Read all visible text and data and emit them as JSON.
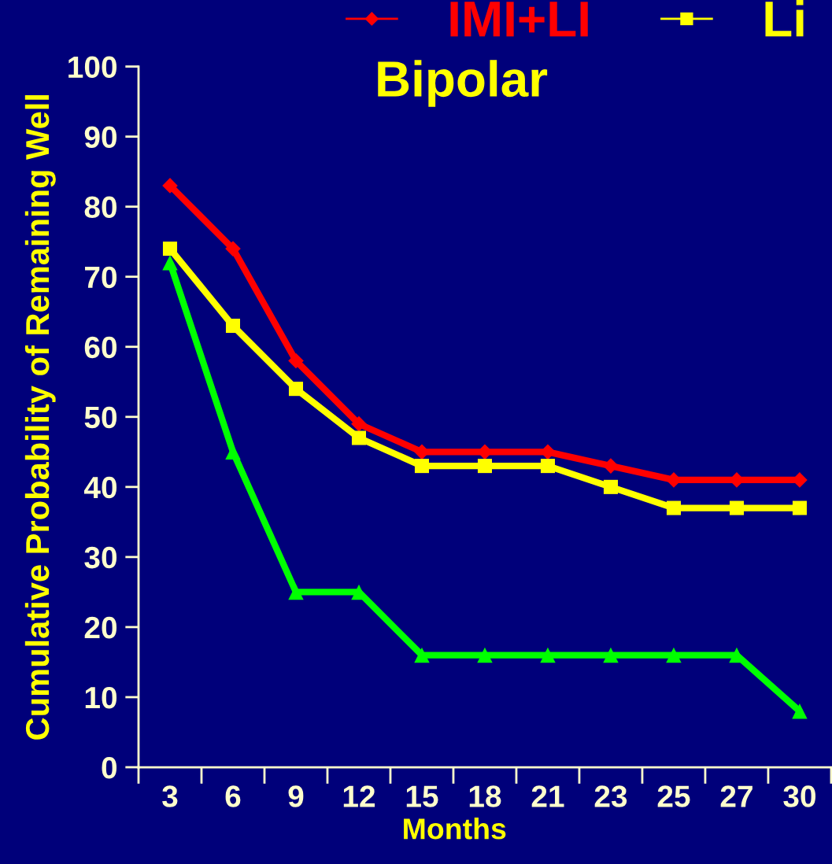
{
  "chart_data": {
    "type": "line",
    "title": "Bipolar",
    "xlabel": "Months",
    "ylabel": "Cumulative Probability of Remaining Well",
    "categories": [
      "3",
      "6",
      "9",
      "12",
      "15",
      "18",
      "21",
      "23",
      "25",
      "27",
      "30"
    ],
    "series": [
      {
        "name": "IMI+LI",
        "color": "#ff0000",
        "marker": "diamond",
        "values": [
          83,
          74,
          58,
          49,
          45,
          45,
          45,
          43,
          41,
          41,
          41
        ]
      },
      {
        "name": "Li",
        "color": "#ffff00",
        "marker": "square",
        "values": [
          74,
          63,
          54,
          47,
          43,
          43,
          43,
          40,
          37,
          37,
          37
        ]
      },
      {
        "color": "#00ff00",
        "marker": "triangle",
        "values": [
          72,
          45,
          25,
          25,
          16,
          16,
          16,
          16,
          16,
          16,
          8
        ]
      }
    ],
    "ylim": [
      0,
      100
    ],
    "yticks": [
      0,
      10,
      20,
      30,
      40,
      50,
      60,
      70,
      80,
      90,
      100
    ],
    "legend": "top right",
    "grid": false,
    "line_style": "solid"
  }
}
